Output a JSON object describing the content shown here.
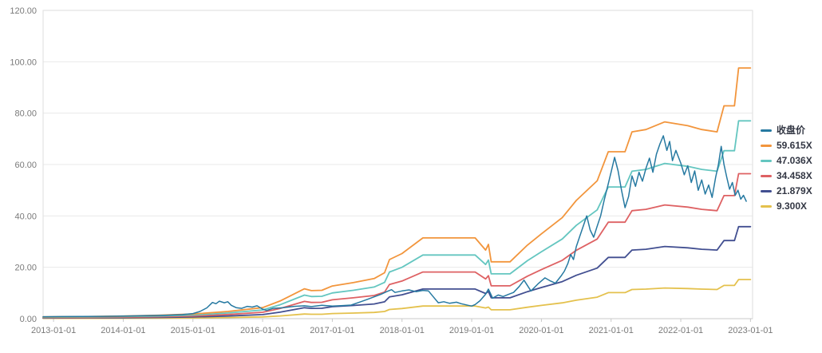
{
  "chart_data": {
    "type": "line",
    "title": "",
    "xlabel": "",
    "ylabel": "",
    "grid": "horizontal",
    "legend_position": "right",
    "x_axis": {
      "ticks": [
        "2013-01-01",
        "2014-01-01",
        "2015-01-01",
        "2016-01-01",
        "2017-01-01",
        "2018-01-01",
        "2019-01-01",
        "2020-01-01",
        "2021-01-01",
        "2022-01-01",
        "2023-01-01"
      ],
      "tick_years": [
        2013,
        2014,
        2015,
        2016,
        2017,
        2018,
        2019,
        2020,
        2021,
        2022,
        2023
      ],
      "range_years": [
        2012.85,
        2023.03
      ]
    },
    "y_axis": {
      "ticks": [
        "0.00",
        "20.00",
        "40.00",
        "60.00",
        "80.00",
        "100.00",
        "120.00"
      ],
      "tick_values": [
        0,
        20,
        40,
        60,
        80,
        100,
        120
      ],
      "min": 0,
      "max": 120
    },
    "band_x": [
      2012.85,
      2013.5,
      2014.0,
      2014.5,
      2015.0,
      2015.5,
      2016.0,
      2016.25,
      2016.6,
      2016.7,
      2016.85,
      2017.0,
      2017.3,
      2017.6,
      2017.75,
      2017.82,
      2018.0,
      2018.3,
      2019.05,
      2019.2,
      2019.24,
      2019.28,
      2019.55,
      2019.8,
      2020.0,
      2020.3,
      2020.5,
      2020.8,
      2020.96,
      2021.2,
      2021.3,
      2021.5,
      2021.77,
      2022.1,
      2022.3,
      2022.52,
      2022.62,
      2022.77,
      2022.83,
      2023.0
    ],
    "series": [
      {
        "name": "收盘价",
        "color": "#2679a1",
        "width": 1.5,
        "x": [
          2012.85,
          2013.1,
          2013.4,
          2013.7,
          2014.0,
          2014.3,
          2014.6,
          2014.85,
          2015.0,
          2015.1,
          2015.2,
          2015.28,
          2015.33,
          2015.38,
          2015.45,
          2015.5,
          2015.55,
          2015.62,
          2015.7,
          2015.78,
          2015.85,
          2015.92,
          2016.0,
          2016.06,
          2016.15,
          2016.3,
          2016.45,
          2016.6,
          2016.7,
          2016.85,
          2017.0,
          2017.15,
          2017.27,
          2017.4,
          2017.5,
          2017.6,
          2017.7,
          2017.78,
          2017.85,
          2017.9,
          2018.0,
          2018.1,
          2018.2,
          2018.3,
          2018.38,
          2018.45,
          2018.52,
          2018.6,
          2018.68,
          2018.78,
          2018.85,
          2018.95,
          2019.0,
          2019.05,
          2019.12,
          2019.2,
          2019.24,
          2019.3,
          2019.38,
          2019.45,
          2019.52,
          2019.6,
          2019.68,
          2019.75,
          2019.85,
          2019.95,
          2020.05,
          2020.12,
          2020.2,
          2020.28,
          2020.33,
          2020.38,
          2020.42,
          2020.46,
          2020.5,
          2020.55,
          2020.6,
          2020.65,
          2020.7,
          2020.75,
          2020.8,
          2020.85,
          2020.9,
          2020.96,
          2021.0,
          2021.05,
          2021.1,
          2021.15,
          2021.2,
          2021.25,
          2021.3,
          2021.35,
          2021.4,
          2021.45,
          2021.5,
          2021.55,
          2021.6,
          2021.65,
          2021.7,
          2021.75,
          2021.8,
          2021.84,
          2021.88,
          2021.93,
          2022.0,
          2022.05,
          2022.1,
          2022.15,
          2022.2,
          2022.25,
          2022.3,
          2022.35,
          2022.4,
          2022.45,
          2022.5,
          2022.54,
          2022.58,
          2022.62,
          2022.66,
          2022.7,
          2022.74,
          2022.78,
          2022.82,
          2022.86,
          2022.9,
          2022.94
        ],
        "y": [
          0.75,
          0.8,
          0.85,
          0.9,
          1.0,
          1.15,
          1.3,
          1.6,
          2.0,
          2.8,
          4.2,
          6.3,
          5.8,
          6.8,
          6.2,
          6.6,
          5.2,
          4.3,
          4.0,
          4.8,
          4.5,
          5.0,
          3.7,
          3.2,
          4.0,
          4.3,
          4.8,
          5.0,
          4.7,
          5.2,
          4.9,
          5.1,
          5.3,
          6.5,
          7.5,
          8.5,
          9.5,
          10.5,
          11.3,
          10.2,
          10.8,
          11.2,
          10.5,
          11.0,
          10.8,
          8.5,
          6.2,
          6.6,
          6.0,
          6.4,
          5.8,
          5.2,
          4.9,
          5.5,
          7.0,
          9.5,
          11.5,
          8.0,
          9.2,
          8.6,
          9.4,
          10.2,
          12.5,
          15.0,
          10.8,
          13.5,
          15.9,
          14.8,
          13.8,
          16.5,
          18.5,
          21.5,
          25.0,
          23.0,
          28.0,
          32.0,
          36.0,
          40.0,
          34.5,
          31.7,
          36.0,
          40.0,
          46.0,
          52.5,
          57.0,
          62.8,
          57.5,
          50.0,
          43.2,
          47.5,
          55.6,
          51.5,
          57.0,
          53.5,
          58.5,
          62.5,
          57.0,
          64.0,
          68.0,
          71.2,
          65.5,
          69.0,
          61.5,
          65.5,
          60.5,
          56.0,
          59.5,
          53.0,
          57.5,
          50.0,
          54.0,
          48.5,
          52.0,
          47.2,
          55.0,
          60.0,
          67.1,
          60.0,
          55.0,
          50.4,
          53.0,
          48.0,
          50.0,
          46.5,
          48.0,
          45.7
        ]
      },
      {
        "name": "59.615X",
        "color": "#f2953c",
        "width": 1.8,
        "multiple": 59.615,
        "use_band_x": true,
        "y": [
          0.69,
          0.8,
          1.01,
          1.31,
          1.79,
          2.8,
          4.29,
          6.86,
          11.62,
          10.91,
          11.03,
          12.7,
          14.01,
          15.62,
          17.88,
          23.01,
          25.34,
          31.42,
          31.42,
          26.71,
          28.91,
          22.12,
          22.12,
          28.62,
          33.03,
          39.35,
          46.02,
          53.65,
          64.98,
          64.98,
          72.73,
          73.62,
          76.61,
          75.11,
          73.62,
          72.73,
          82.86,
          82.86,
          97.59,
          97.59
        ]
      },
      {
        "name": "47.036X",
        "color": "#64c6c0",
        "width": 1.8,
        "multiple": 47.036,
        "use_band_x": true,
        "y": [
          0.54,
          0.64,
          0.8,
          1.03,
          1.41,
          2.21,
          3.39,
          5.41,
          9.17,
          8.61,
          8.7,
          10.02,
          11.05,
          12.32,
          14.11,
          18.16,
          19.99,
          24.79,
          24.79,
          21.07,
          22.81,
          17.45,
          17.45,
          22.58,
          26.06,
          31.04,
          36.31,
          42.33,
          51.27,
          51.27,
          57.38,
          58.09,
          60.44,
          59.27,
          58.09,
          57.38,
          65.38,
          65.38,
          77.0,
          77.0
        ]
      },
      {
        "name": "34.458X",
        "color": "#de6163",
        "width": 1.8,
        "multiple": 34.458,
        "use_band_x": true,
        "y": [
          0.4,
          0.47,
          0.59,
          0.76,
          1.03,
          1.62,
          2.48,
          3.96,
          6.72,
          6.31,
          6.37,
          7.34,
          8.1,
          9.03,
          10.34,
          13.3,
          14.64,
          18.16,
          18.16,
          15.44,
          16.71,
          12.78,
          12.78,
          16.54,
          19.09,
          22.74,
          26.6,
          31.01,
          37.56,
          37.56,
          42.04,
          42.56,
          44.28,
          43.42,
          42.56,
          42.04,
          47.9,
          47.9,
          56.41,
          56.41
        ]
      },
      {
        "name": "21.879X",
        "color": "#424f91",
        "width": 1.8,
        "multiple": 21.879,
        "use_band_x": true,
        "y": [
          0.25,
          0.3,
          0.37,
          0.48,
          0.66,
          1.03,
          1.58,
          2.52,
          4.27,
          4.0,
          4.05,
          4.66,
          5.14,
          5.73,
          6.56,
          8.45,
          9.3,
          11.53,
          11.53,
          9.8,
          10.61,
          8.12,
          8.12,
          10.5,
          12.12,
          14.44,
          16.89,
          19.69,
          23.85,
          23.85,
          26.69,
          27.02,
          28.11,
          27.57,
          27.02,
          26.69,
          30.41,
          30.41,
          35.82,
          35.82
        ]
      },
      {
        "name": "9.300X",
        "color": "#e4c14d",
        "width": 1.8,
        "multiple": 9.3,
        "use_band_x": true,
        "y": [
          0.11,
          0.13,
          0.16,
          0.2,
          0.28,
          0.44,
          0.67,
          1.07,
          1.81,
          1.7,
          1.72,
          1.98,
          2.19,
          2.44,
          2.79,
          3.59,
          3.95,
          4.9,
          4.9,
          4.17,
          4.51,
          3.45,
          3.45,
          4.46,
          5.15,
          6.14,
          7.18,
          8.37,
          10.14,
          10.14,
          11.35,
          11.49,
          11.95,
          11.72,
          11.49,
          11.35,
          12.93,
          12.93,
          15.22,
          15.22
        ]
      }
    ],
    "colors": {
      "grid": "#e9e9e9",
      "plot_border": "#dedede",
      "axis_line": "#c9c9c9",
      "tick_text": "#7a7a7a"
    }
  }
}
